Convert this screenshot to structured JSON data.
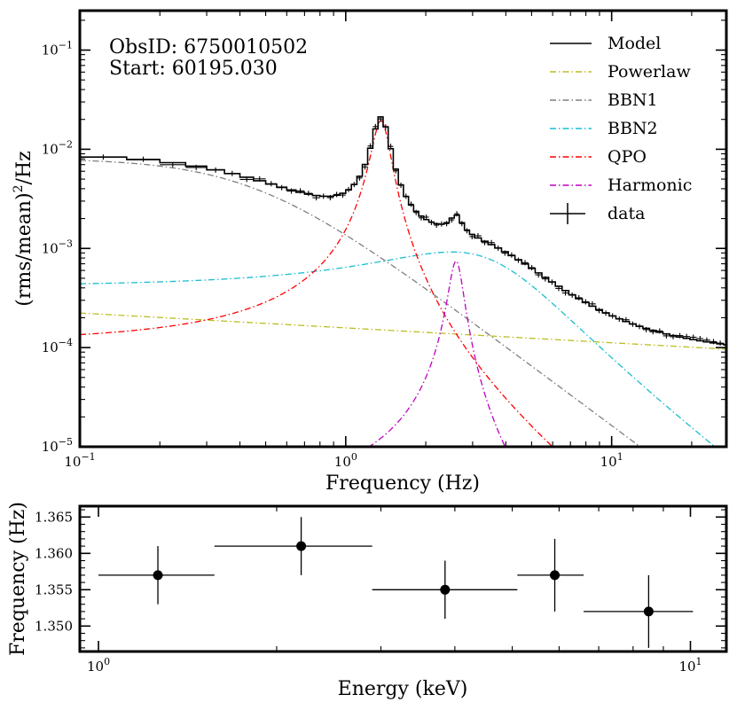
{
  "chart_data": [
    {
      "type": "line",
      "subtype": "power-density-spectrum",
      "xscale": "log",
      "yscale": "log",
      "xlim": [
        0.1,
        27
      ],
      "ylim": [
        1e-05,
        0.25
      ],
      "xlabel": "Frequency (Hz)",
      "ylabel_main": "(rms/mean)",
      "ylabel_sup": "2",
      "ylabel_tail": "/Hz",
      "x_ticks": [
        {
          "value": 0.1,
          "base": "10",
          "exp": "−1"
        },
        {
          "value": 1,
          "base": "10",
          "exp": "0"
        },
        {
          "value": 10,
          "base": "10",
          "exp": "1"
        }
      ],
      "y_ticks": [
        {
          "value": 1e-05,
          "base": "10",
          "exp": "−5"
        },
        {
          "value": 0.0001,
          "base": "10",
          "exp": "−4"
        },
        {
          "value": 0.001,
          "base": "10",
          "exp": "−3"
        },
        {
          "value": 0.01,
          "base": "10",
          "exp": "−2"
        },
        {
          "value": 0.1,
          "base": "10",
          "exp": "−1"
        }
      ],
      "annotations": [
        "ObsID: 6750010502",
        "Start: 60195.030"
      ],
      "legend_position": "top-right",
      "components": [
        {
          "name": "Powerlaw",
          "kind": "powerlaw",
          "color": "#bcbd22",
          "norm": 0.000158,
          "index": 0.15
        },
        {
          "name": "BBN1",
          "kind": "lorentzian",
          "color": "#7f7f7f",
          "f0": 0.0,
          "width": 0.9,
          "peak": 0.0081
        },
        {
          "name": "BBN2",
          "kind": "lorentzian",
          "color": "#17becf",
          "f0": 2.5,
          "width": 4.6,
          "peak": 0.00092
        },
        {
          "name": "QPO",
          "kind": "lorentzian",
          "color": "#ff0000",
          "f0": 1.357,
          "width": 0.21,
          "peak": 0.0195
        },
        {
          "name": "Harmonic",
          "kind": "lorentzian",
          "color": "#bf00bf",
          "f0": 2.6,
          "width": 0.32,
          "peak": 0.00075
        }
      ],
      "model": {
        "name": "Model",
        "color": "#000000"
      },
      "data_series": {
        "name": "data",
        "color": "#000000"
      },
      "legend": [
        "Model",
        "Powerlaw",
        "BBN1",
        "BBN2",
        "QPO",
        "Harmonic",
        "data"
      ]
    },
    {
      "type": "scatter",
      "subtype": "errorbar",
      "xscale": "log",
      "xlim": [
        0.93,
        11.5
      ],
      "ylim": [
        1.3465,
        1.3665
      ],
      "xlabel": "Energy (keV)",
      "ylabel": "Frequency (Hz)",
      "x_ticks": [
        {
          "value": 1,
          "base": "10",
          "exp": "0"
        },
        {
          "value": 10,
          "base": "10",
          "exp": "1"
        }
      ],
      "y_ticks": [
        {
          "value": 1.35,
          "label": "1.350"
        },
        {
          "value": 1.355,
          "label": "1.355"
        },
        {
          "value": 1.36,
          "label": "1.360"
        },
        {
          "value": 1.365,
          "label": "1.365"
        }
      ],
      "points": [
        {
          "x": 1.26,
          "xlo": 1.0,
          "xhi": 1.57,
          "y": 1.357,
          "yerr": 0.004
        },
        {
          "x": 2.2,
          "xlo": 1.57,
          "xhi": 2.9,
          "y": 1.361,
          "yerr": 0.004
        },
        {
          "x": 3.85,
          "xlo": 2.9,
          "xhi": 5.1,
          "y": 1.355,
          "yerr": 0.004
        },
        {
          "x": 5.9,
          "xlo": 5.1,
          "xhi": 6.6,
          "y": 1.357,
          "yerr": 0.005
        },
        {
          "x": 8.5,
          "xlo": 6.6,
          "xhi": 10.1,
          "y": 1.352,
          "yerr": 0.005
        }
      ]
    }
  ]
}
